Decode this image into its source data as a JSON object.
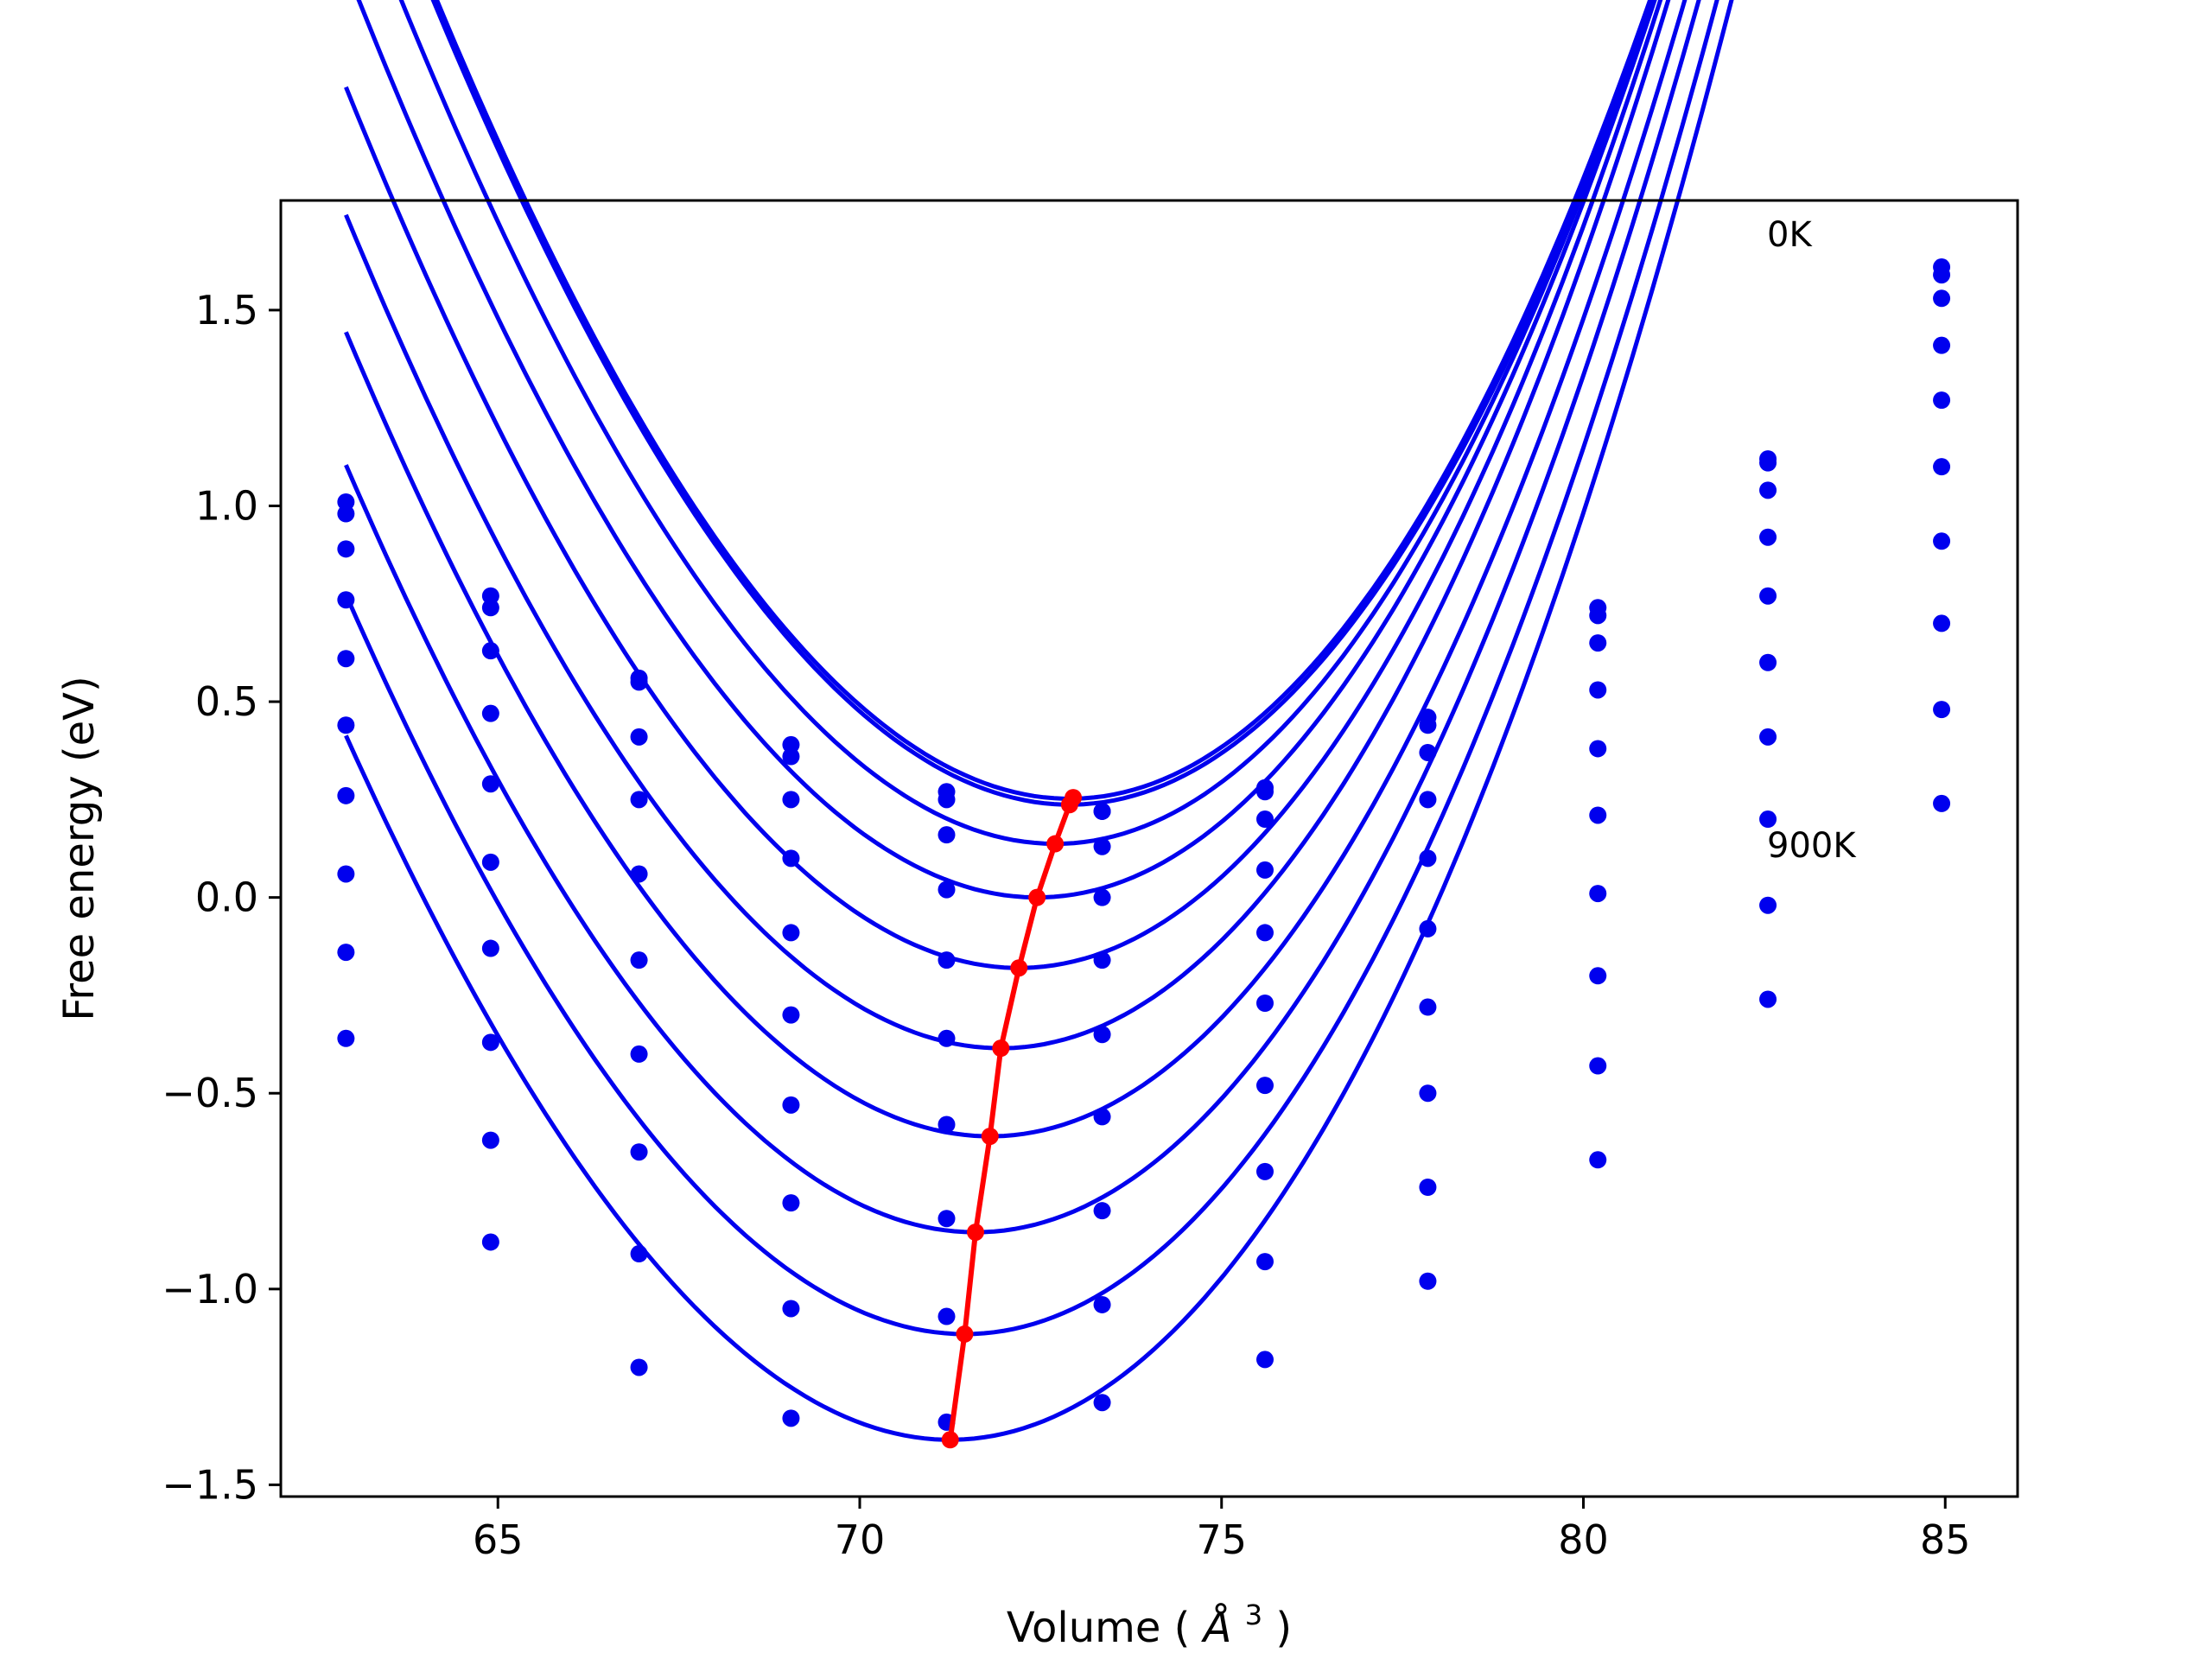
{
  "chart_data": {
    "type": "line",
    "xlabel_main": "Volume (",
    "xlabel_sym": "Å",
    "xlabel_exp": "3",
    "xlabel_end": ")",
    "ylabel": "Free energy (eV)",
    "xlim": [
      62.0,
      86.0
    ],
    "ylim": [
      -1.53,
      1.78
    ],
    "xticks": [
      65,
      70,
      75,
      80,
      85
    ],
    "xtick_labels": [
      "65",
      "70",
      "75",
      "80",
      "85"
    ],
    "yticks": [
      -1.5,
      -1.0,
      -0.5,
      0.0,
      0.5,
      1.0,
      1.5
    ],
    "ytick_labels": [
      "−1.5",
      "−1.0",
      "−0.5",
      "0.0",
      "0.5",
      "1.0",
      "1.5"
    ],
    "grid": false,
    "colors": {
      "series": "#0000ee",
      "minima": "#ff0000"
    },
    "annotations": [
      {
        "text": "0K",
        "x": 82.5,
        "y": 1.67
      },
      {
        "text": "900K",
        "x": 82.5,
        "y": 0.1
      }
    ],
    "x": [
      62.9,
      64.9,
      66.95,
      69.05,
      71.2,
      73.35,
      75.6,
      77.85,
      80.2,
      82.55,
      84.95
    ],
    "series": [
      {
        "points": [
          1.01,
          0.77,
          0.56,
          0.39,
          0.27,
          0.22,
          0.28,
          0.46,
          0.74,
          1.12,
          1.61
        ],
        "fit": {
          "vmin": 72.9,
          "emin": 0.252,
          "a": 0.0293,
          "c": 0.0003
        }
      },
      {
        "points": [
          0.98,
          0.74,
          0.55,
          0.36,
          0.25,
          0.22,
          0.27,
          0.44,
          0.72,
          1.11,
          1.59
        ],
        "fit": {
          "vmin": 72.9,
          "emin": 0.237,
          "a": 0.0292,
          "c": 0.0003
        }
      },
      {
        "points": [
          0.89,
          0.63,
          0.41,
          0.25,
          0.16,
          0.13,
          0.2,
          0.37,
          0.65,
          1.04,
          1.53
        ],
        "fit": {
          "vmin": 72.7,
          "emin": 0.137,
          "a": 0.0291,
          "c": 0.0003
        }
      },
      {
        "points": [
          0.76,
          0.47,
          0.25,
          0.1,
          0.02,
          0.0,
          0.07,
          0.25,
          0.53,
          0.92,
          1.41
        ],
        "fit": {
          "vmin": 72.45,
          "emin": 0.0,
          "a": 0.0289,
          "c": 0.0003
        }
      },
      {
        "points": [
          0.61,
          0.29,
          0.06,
          -0.09,
          -0.16,
          -0.16,
          -0.09,
          0.1,
          0.38,
          0.77,
          1.27
        ],
        "fit": {
          "vmin": 72.2,
          "emin": -0.18,
          "a": 0.0288,
          "c": 0.0003
        }
      },
      {
        "points": [
          0.44,
          0.09,
          -0.16,
          -0.3,
          -0.36,
          -0.35,
          -0.27,
          -0.08,
          0.21,
          0.6,
          1.1
        ],
        "fit": {
          "vmin": 71.95,
          "emin": -0.385,
          "a": 0.0287,
          "c": 0.0003
        }
      },
      {
        "points": [
          0.26,
          -0.13,
          -0.4,
          -0.53,
          -0.58,
          -0.56,
          -0.48,
          -0.28,
          0.01,
          0.41,
          0.91
        ],
        "fit": {
          "vmin": 71.8,
          "emin": -0.61,
          "a": 0.0286,
          "c": 0.0003
        }
      },
      {
        "points": [
          0.06,
          -0.37,
          -0.65,
          -0.78,
          -0.82,
          -0.8,
          -0.7,
          -0.5,
          -0.2,
          0.2,
          0.7
        ],
        "fit": {
          "vmin": 71.6,
          "emin": -0.855,
          "a": 0.0285,
          "c": 0.0003
        }
      },
      {
        "points": [
          -0.14,
          -0.62,
          -0.91,
          -1.05,
          -1.07,
          -1.04,
          -0.93,
          -0.74,
          -0.43,
          -0.02,
          0.48
        ],
        "fit": {
          "vmin": 71.45,
          "emin": -1.115,
          "a": 0.0284,
          "c": 0.0003
        }
      },
      {
        "points": [
          -0.36,
          -0.88,
          -1.2,
          -1.33,
          -1.34,
          -1.29,
          -1.18,
          -0.98,
          -0.67,
          -0.26,
          0.24
        ],
        "fit": {
          "vmin": 71.25,
          "emin": -1.385,
          "a": 0.0283,
          "c": 0.0003
        }
      }
    ],
    "minima": [
      {
        "x": 72.95,
        "y": 0.255
      },
      {
        "x": 72.9,
        "y": 0.237
      },
      {
        "x": 72.7,
        "y": 0.137
      },
      {
        "x": 72.45,
        "y": 0.0
      },
      {
        "x": 72.2,
        "y": -0.18
      },
      {
        "x": 71.95,
        "y": -0.385
      },
      {
        "x": 71.8,
        "y": -0.61
      },
      {
        "x": 71.6,
        "y": -0.855
      },
      {
        "x": 71.45,
        "y": -1.115
      },
      {
        "x": 71.25,
        "y": -1.385
      }
    ]
  }
}
